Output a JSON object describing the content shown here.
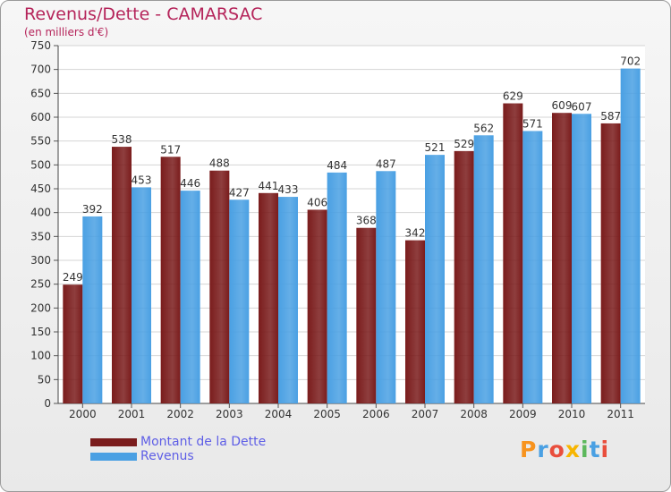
{
  "chart_data": {
    "type": "bar",
    "title": "Revenus/Dette - CAMARSAC",
    "subtitle": "(en milliers d'€)",
    "categories": [
      "2000",
      "2001",
      "2002",
      "2003",
      "2004",
      "2005",
      "2006",
      "2007",
      "2008",
      "2009",
      "2010",
      "2011"
    ],
    "series": [
      {
        "name": "Montant de la Dette",
        "color": "#7a1c1c",
        "values": [
          249,
          538,
          517,
          488,
          441,
          406,
          368,
          342,
          529,
          629,
          609,
          587
        ]
      },
      {
        "name": "Revenus",
        "color": "#4aa0e3",
        "values": [
          392,
          453,
          446,
          427,
          433,
          484,
          487,
          521,
          562,
          571,
          607,
          702
        ]
      }
    ],
    "ylim": [
      0,
      750
    ],
    "yticks": [
      0,
      50,
      100,
      150,
      200,
      250,
      300,
      350,
      400,
      450,
      500,
      550,
      600,
      650,
      700,
      750
    ],
    "grid": true,
    "legend_position": "bottom-left"
  },
  "logo": {
    "letters": [
      "P",
      "r",
      "o",
      "x",
      "i",
      "t",
      "i"
    ],
    "colors": [
      "#f7931e",
      "#4aa0e3",
      "#e94e3c",
      "#f7b500",
      "#5cb85c",
      "#4aa0e3",
      "#e94e3c"
    ]
  }
}
